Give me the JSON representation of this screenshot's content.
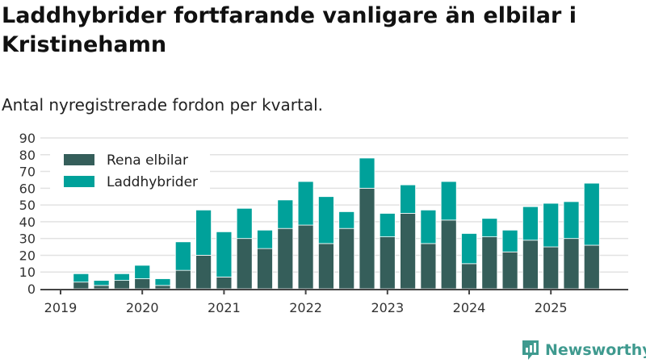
{
  "title": "Laddhybrider fortfarande vanligare än elbilar i Kristinehamn",
  "subtitle": "Antal nyregistrerade fordon per kvartal.",
  "brand": "Newsworthy",
  "chart_data": {
    "type": "bar",
    "stacked": true,
    "categories": [
      "2019 Q1",
      "2019 Q2",
      "2019 Q3",
      "2019 Q4",
      "2020 Q1",
      "2020 Q2",
      "2020 Q3",
      "2020 Q4",
      "2021 Q1",
      "2021 Q2",
      "2021 Q3",
      "2021 Q4",
      "2022 Q1",
      "2022 Q2",
      "2022 Q3",
      "2022 Q4",
      "2023 Q1",
      "2023 Q2",
      "2023 Q3",
      "2023 Q4",
      "2024 Q1",
      "2024 Q2",
      "2024 Q3",
      "2024 Q4",
      "2025 Q1",
      "2025 Q2",
      "2025 Q3"
    ],
    "series": [
      {
        "name": "Rena elbilar",
        "color": "#355e5a",
        "values": [
          0,
          4,
          2,
          5,
          6,
          2,
          11,
          20,
          7,
          30,
          24,
          36,
          38,
          27,
          36,
          60,
          31,
          45,
          27,
          41,
          15,
          31,
          22,
          29,
          25,
          30,
          26
        ]
      },
      {
        "name": "Laddhybrider",
        "color": "#00a19a",
        "values": [
          0,
          5,
          3,
          4,
          8,
          4,
          17,
          27,
          27,
          18,
          11,
          17,
          26,
          28,
          10,
          18,
          14,
          17,
          20,
          23,
          18,
          11,
          13,
          20,
          26,
          22,
          37
        ]
      }
    ],
    "x_ticks": [
      "2019",
      "2020",
      "2021",
      "2022",
      "2023",
      "2024",
      "2025"
    ],
    "y_ticks": [
      0,
      10,
      20,
      30,
      40,
      50,
      60,
      70,
      80,
      90
    ],
    "ylim": [
      0,
      90
    ],
    "grid": true,
    "legend": "top-left",
    "xlabel": "",
    "ylabel": ""
  }
}
